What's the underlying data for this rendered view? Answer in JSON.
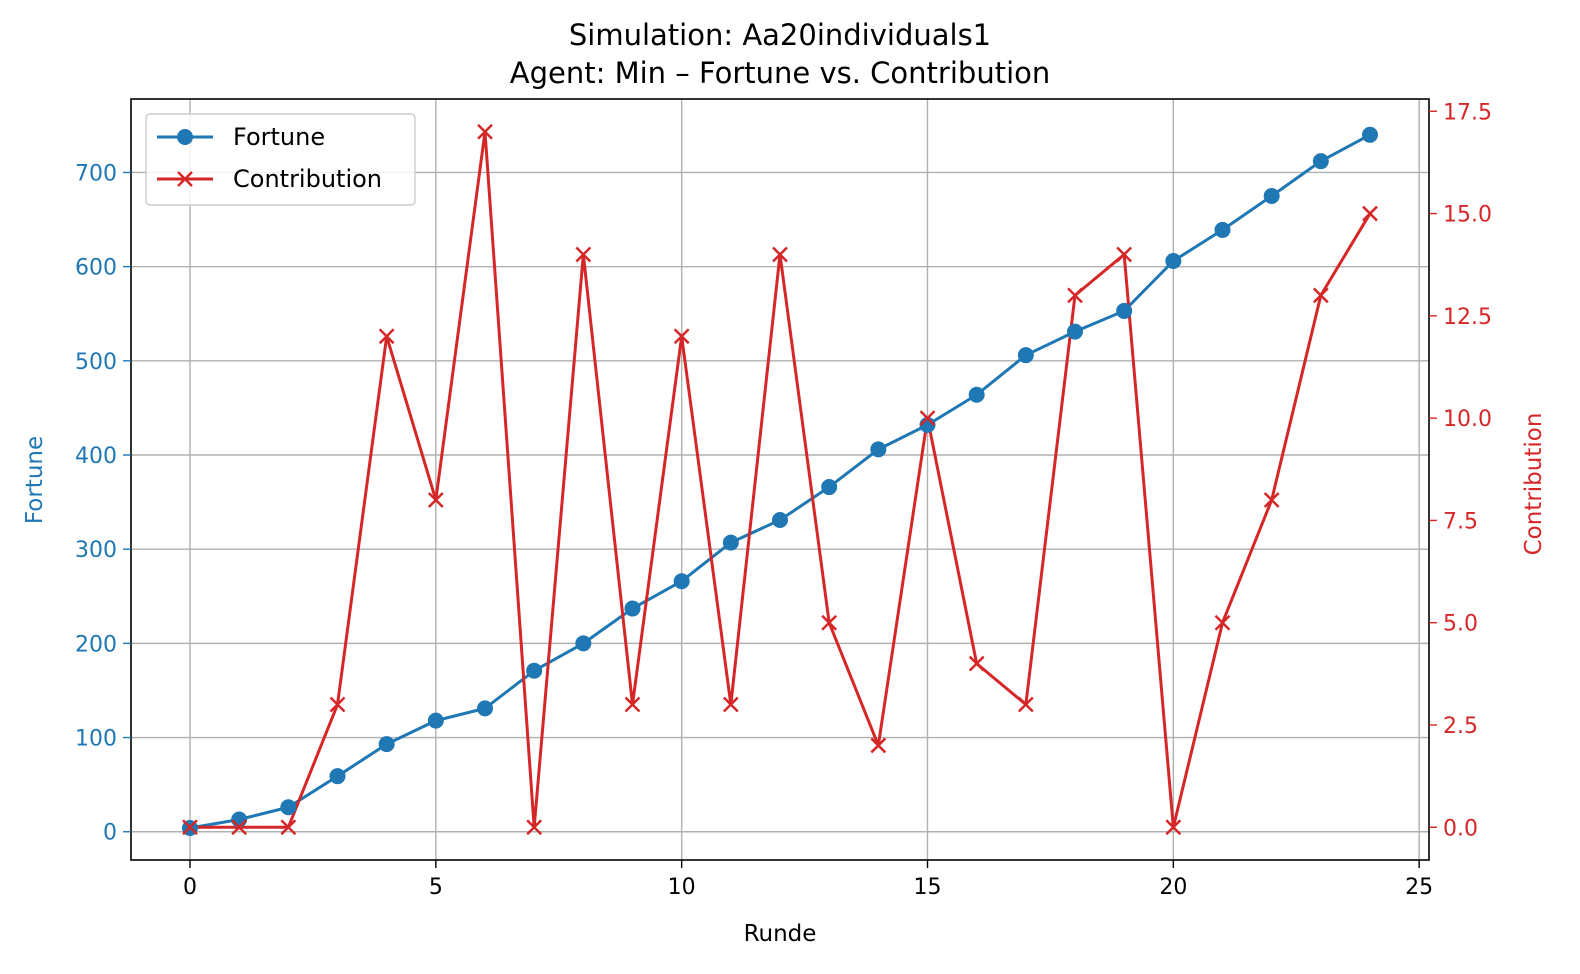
{
  "chart_data": {
    "type": "line",
    "title": "Simulation: Aa20individuals1",
    "subtitle": "Agent: Min – Fortune vs. Contribution",
    "xlabel": "Runde",
    "ylabel_left": "Fortune",
    "ylabel_right": "Contribution",
    "xlim": [
      -1.2,
      25.2
    ],
    "ylim_left": [
      -30,
      778
    ],
    "ylim_right": [
      -0.8,
      17.8
    ],
    "x_ticks": [
      0,
      5,
      10,
      15,
      20,
      25
    ],
    "y_left_ticks": [
      0,
      100,
      200,
      300,
      400,
      500,
      600,
      700
    ],
    "y_right_ticks": [
      "0.0",
      "2.5",
      "5.0",
      "7.5",
      "10.0",
      "12.5",
      "15.0",
      "17.5"
    ],
    "grid": true,
    "legend_position": "top-left",
    "x": [
      0,
      1,
      2,
      3,
      4,
      5,
      6,
      7,
      8,
      9,
      10,
      11,
      12,
      13,
      14,
      15,
      16,
      17,
      18,
      19,
      20,
      21,
      22,
      23,
      24
    ],
    "series": [
      {
        "name": "Fortune",
        "axis": "left",
        "color": "#1f77b4",
        "marker": "circle",
        "values": [
          4,
          13,
          26,
          59,
          93,
          118,
          131,
          171,
          200,
          237,
          266,
          307,
          331,
          366,
          406,
          432,
          464,
          506,
          531,
          553,
          606,
          639,
          675,
          712,
          740
        ]
      },
      {
        "name": "Contribution",
        "axis": "right",
        "color": "#d62728",
        "marker": "x",
        "values": [
          0,
          0,
          0,
          3,
          12,
          8,
          17,
          0,
          14,
          3,
          12,
          3,
          14,
          5,
          2,
          10,
          4,
          3,
          13,
          14,
          0,
          5,
          8,
          13,
          15
        ]
      }
    ]
  }
}
